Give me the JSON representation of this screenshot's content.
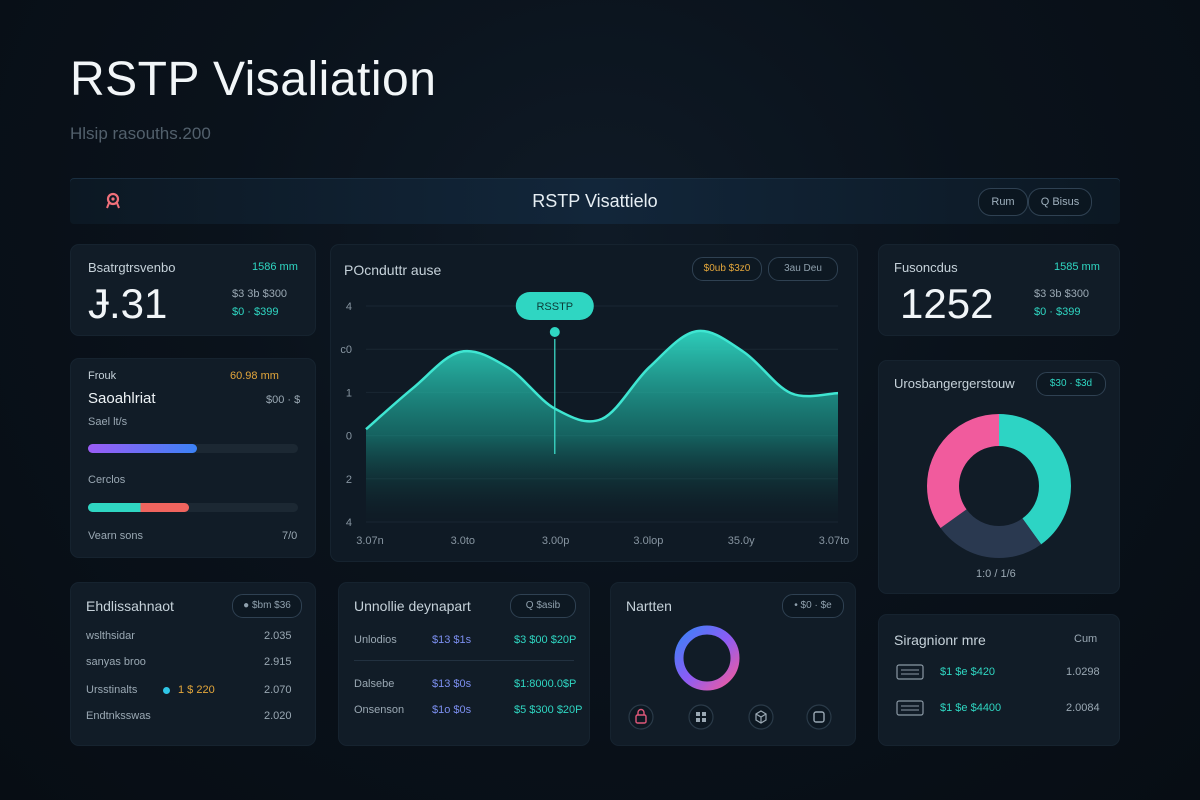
{
  "header": {
    "title": "RSTP Visaliation",
    "subtitle": "Hlsip rasouths.200"
  },
  "topbar": {
    "title": "RSTP Visattielo",
    "btn1": "Rum",
    "btn2": "Q Bisus",
    "logo_icon": "network-node-icon"
  },
  "kpi1": {
    "label": "Bsatrgtrsvenbo",
    "tag": "1586 mm",
    "value": "Ɉ.31",
    "meta1": "$3 3b $300",
    "meta2": "$0 · $399"
  },
  "progress": {
    "label": "Frouk",
    "tag": "60.98 mm",
    "subtitle": "Saoahlriat",
    "subtag": "$00 · $",
    "bar1_label": "Sael lt/s",
    "bar2_label": "Cerclos",
    "footer_label": "Vearn sons",
    "footer_value": "7/0",
    "bar1_pct": 0.52,
    "bar2_pct": 0.48,
    "colors": {
      "bar1_start": "#9b5cf6",
      "bar1_end": "#3b82f6",
      "bar2_start": "#2fd6c2",
      "bar2_end": "#f0645e"
    }
  },
  "main_chart": {
    "label": "POcnduttr ause",
    "btn1": "$0ub $3z0",
    "btn2": "3au Deu",
    "tooltip": "RSSTP"
  },
  "chart_data": {
    "type": "area",
    "title": "POcnduttr ause",
    "y_tick_labels": [
      "4",
      "c0",
      "1",
      "0",
      "2",
      "4"
    ],
    "x_tick_labels": [
      "3.07n",
      "3.0to",
      "3.00p",
      "3.0lop",
      "35.0y",
      "3.07to"
    ],
    "x": [
      0,
      0.5,
      1,
      1.5,
      2,
      2.5,
      3,
      3.5,
      4,
      4.5,
      5
    ],
    "values": [
      1.8,
      2.6,
      3.3,
      3.0,
      2.2,
      2.0,
      3.0,
      3.7,
      3.3,
      2.5,
      2.5
    ],
    "ylim": [
      0,
      4.5
    ],
    "highlight_index": 4,
    "tooltip": "RSSTP",
    "color": "#2fd6c2"
  },
  "kpi2": {
    "label": "Fusoncdus",
    "tag": "1585 mm",
    "value": "1252",
    "meta1": "$3 3b $300",
    "meta2": "$0 · $399"
  },
  "donut_card": {
    "label": "Urosbangergerstouw",
    "pill": "$30 · $3d",
    "footer": "1:0 / 1/6",
    "slices": [
      {
        "name": "cyan",
        "value": 40,
        "color": "#2dd4c4"
      },
      {
        "name": "navy",
        "value": 25,
        "color": "#2a3950"
      },
      {
        "name": "pink",
        "value": 35,
        "color": "#f15b9d"
      }
    ]
  },
  "list_card": {
    "label": "Ehdlissahnaot",
    "pill": "● $bm $36",
    "rows": [
      {
        "name": "wslthsidar",
        "tag": "",
        "value": "2.035"
      },
      {
        "name": "sanyas broo",
        "tag": "",
        "value": "2.915"
      },
      {
        "name": "Ursstinalts",
        "tag": "1 $ 220",
        "value": "2.070"
      },
      {
        "name": "Endtnksswas",
        "tag": "",
        "value": "2.020"
      }
    ]
  },
  "table_card": {
    "label": "Unnollie deynapart",
    "pill": "Q $asib",
    "rows": [
      {
        "c1": "Unlodios",
        "c2": "$13 $1s",
        "c3": "$3 $00 $20P"
      },
      {
        "c1": "Dalsebe",
        "c2": "$13 $0s",
        "c3": "$1:8000.0$P"
      },
      {
        "c1": "Onsenson",
        "c2": "$1o $0s",
        "c3": "$5 $300 $20P"
      }
    ]
  },
  "ring_card": {
    "label": "Nartten",
    "pill": "• $0 · $e",
    "icons": [
      "lock-icon",
      "grid-icon",
      "cube-icon",
      "box-icon"
    ]
  },
  "stats_card": {
    "label": "Siragnionr mre",
    "tag": "Cum",
    "rows": [
      {
        "a": "$1 $e $420",
        "b": "1.0298"
      },
      {
        "a": "$1 $e $4400",
        "b": "2.0084"
      }
    ]
  }
}
